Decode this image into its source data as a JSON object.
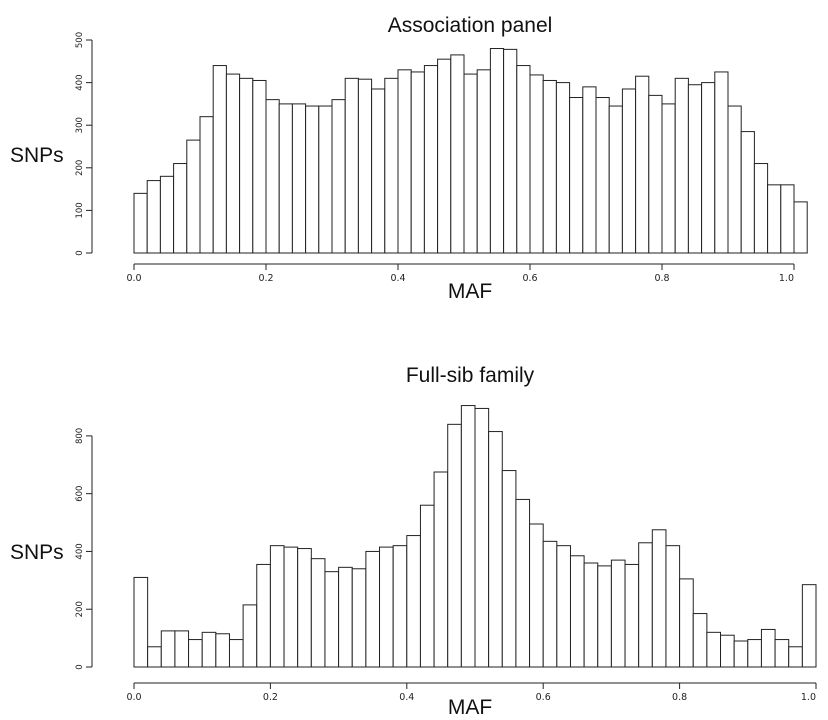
{
  "chart_data": [
    {
      "type": "bar",
      "title": "Association panel",
      "xlabel": "MAF",
      "ylabel": "SNPs",
      "xlim": [
        0.0,
        1.0
      ],
      "ylim": [
        0,
        500
      ],
      "bin_width": 0.02,
      "x_ticks": [
        "0.0",
        "0.2",
        "0.4",
        "0.6",
        "0.8",
        "1.0"
      ],
      "y_ticks": [
        "0",
        "100",
        "200",
        "300",
        "400",
        "500"
      ],
      "grid": false,
      "values": [
        140,
        170,
        180,
        210,
        265,
        320,
        440,
        420,
        410,
        405,
        360,
        350,
        350,
        345,
        345,
        360,
        410,
        408,
        385,
        410,
        430,
        425,
        440,
        455,
        465,
        420,
        430,
        480,
        478,
        440,
        418,
        405,
        400,
        365,
        390,
        365,
        345,
        385,
        415,
        370,
        350,
        410,
        395,
        400,
        425,
        345,
        285,
        210,
        160,
        160,
        120
      ]
    },
    {
      "type": "bar",
      "title": "Full-sib family",
      "xlabel": "MAF",
      "ylabel": "SNPs",
      "xlim": [
        0.0,
        1.0
      ],
      "ylim": [
        0,
        900
      ],
      "bin_width": 0.02,
      "x_ticks": [
        "0.0",
        "0.2",
        "0.4",
        "0.6",
        "0.8",
        "1.0"
      ],
      "y_ticks": [
        "0",
        "200",
        "400",
        "600",
        "800"
      ],
      "grid": false,
      "values": [
        310,
        70,
        125,
        125,
        95,
        120,
        115,
        95,
        215,
        355,
        420,
        415,
        410,
        375,
        330,
        345,
        340,
        400,
        415,
        420,
        455,
        560,
        675,
        840,
        905,
        895,
        815,
        680,
        580,
        495,
        435,
        420,
        385,
        360,
        350,
        370,
        355,
        430,
        475,
        420,
        305,
        185,
        120,
        110,
        90,
        95,
        130,
        95,
        70,
        285
      ]
    }
  ]
}
